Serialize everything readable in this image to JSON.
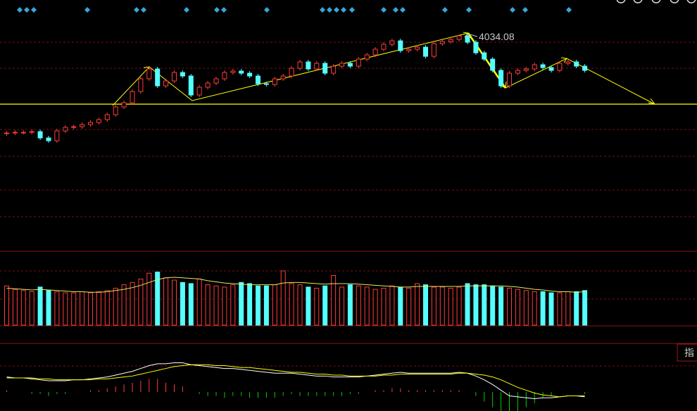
{
  "chart_data": [
    {
      "type": "candlestick",
      "up_color": "#ff3c3c",
      "down_color": "#54ffff",
      "ylim": [
        3420,
        4130
      ],
      "support_line": 3834,
      "support_color": "#ffff00",
      "open": [
        3750,
        3752,
        3754,
        3754,
        3756,
        3738,
        3730,
        3758,
        3768,
        3770,
        3776,
        3782,
        3790,
        3804,
        3826,
        3838,
        3870,
        3906,
        3934,
        3886,
        3900,
        3924,
        3914,
        3860,
        3882,
        3894,
        3906,
        3924,
        3928,
        3922,
        3914,
        3892,
        3890,
        3906,
        3914,
        3936,
        3954,
        3934,
        3950,
        3922,
        3942,
        3950,
        3942,
        3962,
        3974,
        3990,
        4004,
        4014,
        3986,
        3990,
        3996,
        3970,
        4006,
        4012,
        4018,
        4028,
        4010,
        3980,
        3962,
        3930,
        3886,
        3922,
        3930,
        3934,
        3946,
        3938,
        3930,
        3950,
        3954,
        3942
      ],
      "high": [
        3758,
        3760,
        3760,
        3762,
        3762,
        3744,
        3764,
        3774,
        3776,
        3782,
        3788,
        3796,
        3810,
        3832,
        3844,
        3876,
        3912,
        3940,
        3940,
        3906,
        3930,
        3930,
        3920,
        3888,
        3900,
        3912,
        3930,
        3934,
        3934,
        3928,
        3920,
        3898,
        3912,
        3920,
        3942,
        3960,
        3960,
        3956,
        3956,
        3948,
        3956,
        3956,
        3968,
        3980,
        3996,
        4010,
        4020,
        4020,
        3996,
        4002,
        4002,
        4012,
        4018,
        4024,
        4030,
        4034.08,
        4016,
        3986,
        3968,
        3936,
        3928,
        3936,
        3940,
        3952,
        3952,
        3944,
        3956,
        3960,
        3960,
        3948
      ],
      "low": [
        3744,
        3746,
        3748,
        3748,
        3732,
        3724,
        3724,
        3752,
        3762,
        3764,
        3770,
        3776,
        3784,
        3798,
        3820,
        3832,
        3864,
        3900,
        3880,
        3880,
        3894,
        3908,
        3854,
        3854,
        3876,
        3888,
        3900,
        3918,
        3916,
        3908,
        3886,
        3884,
        3884,
        3900,
        3908,
        3930,
        3928,
        3928,
        3916,
        3916,
        3936,
        3936,
        3936,
        3956,
        3968,
        3984,
        3998,
        3980,
        3980,
        3984,
        3964,
        3964,
        4000,
        4006,
        4012,
        4004,
        3974,
        3956,
        3924,
        3880,
        3880,
        3916,
        3924,
        3928,
        3932,
        3924,
        3924,
        3944,
        3936,
        3924
      ],
      "close": [
        3752,
        3754,
        3754,
        3756,
        3738,
        3730,
        3758,
        3768,
        3770,
        3776,
        3782,
        3790,
        3804,
        3826,
        3838,
        3870,
        3906,
        3934,
        3886,
        3900,
        3924,
        3914,
        3860,
        3882,
        3894,
        3906,
        3924,
        3928,
        3922,
        3914,
        3892,
        3890,
        3906,
        3914,
        3936,
        3954,
        3934,
        3950,
        3922,
        3942,
        3950,
        3942,
        3962,
        3974,
        3990,
        4004,
        4014,
        3986,
        3990,
        3996,
        3970,
        4006,
        4012,
        4018,
        4028,
        4010,
        3980,
        3962,
        3930,
        3886,
        3922,
        3930,
        3934,
        3946,
        3938,
        3930,
        3950,
        3954,
        3942,
        3930
      ]
    },
    {
      "type": "bar",
      "ylim": [
        0,
        100
      ],
      "ma_color": "#e8e85a",
      "values": [
        68,
        62,
        60,
        58,
        66,
        60,
        58,
        56,
        56,
        58,
        56,
        58,
        60,
        64,
        70,
        74,
        80,
        90,
        92,
        82,
        78,
        74,
        72,
        80,
        70,
        68,
        66,
        70,
        74,
        72,
        68,
        68,
        70,
        94,
        72,
        70,
        66,
        64,
        68,
        86,
        66,
        70,
        68,
        66,
        62,
        64,
        68,
        66,
        64,
        72,
        70,
        66,
        66,
        64,
        66,
        72,
        70,
        70,
        68,
        66,
        64,
        62,
        60,
        58,
        58,
        56,
        56,
        58,
        58,
        60
      ],
      "ma": [
        64,
        63,
        62,
        61,
        62,
        61,
        60,
        59,
        58,
        58,
        57,
        57,
        58,
        60,
        62,
        65,
        69,
        74,
        79,
        82,
        83,
        82,
        81,
        80,
        77,
        75,
        73,
        72,
        71,
        70,
        70,
        70,
        70,
        73,
        74,
        74,
        73,
        72,
        71,
        72,
        72,
        72,
        71,
        70,
        69,
        68,
        67,
        66,
        66,
        67,
        67,
        67,
        67,
        67,
        67,
        68,
        68,
        68,
        68,
        68,
        67,
        66,
        64,
        62,
        61,
        59,
        58,
        58,
        57,
        58
      ]
    },
    {
      "type": "macd",
      "ylim": [
        -20,
        50
      ],
      "dif_color": "#ffffff",
      "dea_color": "#ffff00",
      "pos_color": "#ff3c3c",
      "neg_color": "#00d000",
      "dif": [
        16,
        15,
        15,
        14,
        13,
        12,
        12,
        12,
        13,
        13,
        14,
        15,
        16,
        18,
        20,
        22,
        25,
        28,
        30,
        30,
        31,
        31,
        29,
        28,
        27,
        26,
        25,
        25,
        24,
        23,
        22,
        21,
        20,
        20,
        20,
        19,
        18,
        17,
        17,
        16,
        16,
        16,
        16,
        17,
        18,
        19,
        20,
        21,
        20,
        20,
        20,
        20,
        20,
        20,
        21,
        20,
        17,
        13,
        8,
        2,
        -4,
        -5,
        -6,
        -7,
        -6,
        -6,
        -5,
        -4,
        -4,
        -5
      ],
      "dea": [
        15,
        15,
        15,
        15,
        14,
        14,
        13,
        13,
        13,
        13,
        13,
        14,
        14,
        15,
        16,
        17,
        19,
        21,
        23,
        25,
        27,
        28,
        29,
        29,
        29,
        28,
        28,
        27,
        26,
        26,
        25,
        24,
        23,
        22,
        21,
        21,
        20,
        19,
        19,
        18,
        18,
        17,
        17,
        17,
        17,
        18,
        18,
        19,
        19,
        19,
        19,
        19,
        19,
        19,
        20,
        20,
        19,
        18,
        16,
        13,
        9,
        5,
        2,
        -1,
        -3,
        -4,
        -5,
        -4,
        -4,
        -4
      ],
      "hist": [
        2,
        0,
        0,
        -2,
        -2,
        -4,
        -2,
        -2,
        0,
        0,
        2,
        2,
        4,
        6,
        8,
        10,
        12,
        14,
        14,
        10,
        8,
        6,
        0,
        -2,
        -4,
        -4,
        -6,
        -4,
        -4,
        -6,
        -6,
        -6,
        -6,
        -4,
        -2,
        -4,
        -4,
        -4,
        -4,
        -4,
        -4,
        -2,
        -2,
        0,
        2,
        2,
        4,
        4,
        2,
        2,
        2,
        2,
        2,
        2,
        2,
        0,
        -4,
        -10,
        -16,
        -22,
        -26,
        -20,
        -16,
        -12,
        -6,
        -4,
        0,
        0,
        0,
        -2
      ]
    }
  ],
  "ui": {
    "tab_label": "指"
  }
}
